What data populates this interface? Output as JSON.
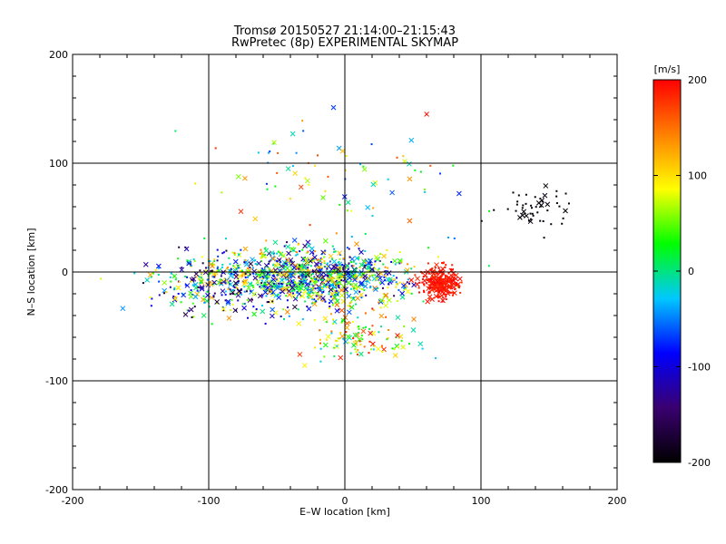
{
  "title_line1": "Tromsø 20150527 21:14:00–21:15:43",
  "title_line2": "RwPretec (8p) EXPERIMENTAL SKYMAP",
  "chart_data": {
    "type": "scatter",
    "title": "Tromsø 20150527 21:14:00–21:15:43",
    "subtitle": "RwPretec (8p) EXPERIMENTAL SKYMAP",
    "xlabel": "E–W location [km]",
    "ylabel": "N–S location [km]",
    "xlim": [
      -200,
      200
    ],
    "ylim": [
      -200,
      200
    ],
    "xticks": [
      -200,
      -100,
      0,
      100,
      200
    ],
    "yticks": [
      -200,
      -100,
      0,
      100,
      200
    ],
    "grid": true,
    "markers": [
      "dot",
      "x"
    ],
    "color_by": "velocity",
    "colorbar": {
      "label": "[m/s]",
      "range": [
        -200,
        200
      ],
      "ticks": [
        200,
        100,
        0,
        -100,
        -200
      ],
      "colormap": [
        "#000000",
        "#3a0070",
        "#0000ff",
        "#00c8ff",
        "#00ff00",
        "#ffff00",
        "#ff8000",
        "#ff0000"
      ]
    },
    "clusters": [
      {
        "center": [
          -20,
          -5
        ],
        "spread": [
          55,
          22
        ],
        "points": 900,
        "velocity_mean": 0,
        "velocity_spread": 150
      },
      {
        "center": [
          70,
          -10
        ],
        "spread": [
          12,
          12
        ],
        "points": 260,
        "velocity_mean": 190,
        "velocity_spread": 10
      },
      {
        "center": [
          -90,
          -10
        ],
        "spread": [
          45,
          25
        ],
        "points": 320,
        "velocity_mean": -20,
        "velocity_spread": 160
      },
      {
        "center": [
          140,
          60
        ],
        "spread": [
          25,
          15
        ],
        "points": 50,
        "velocity_mean": -195,
        "velocity_spread": 5
      },
      {
        "center": [
          10,
          -60
        ],
        "spread": [
          35,
          20
        ],
        "points": 120,
        "velocity_mean": 80,
        "velocity_spread": 120
      },
      {
        "center": [
          0,
          90
        ],
        "spread": [
          80,
          45
        ],
        "points": 80,
        "velocity_mean": 60,
        "velocity_spread": 140
      }
    ]
  }
}
